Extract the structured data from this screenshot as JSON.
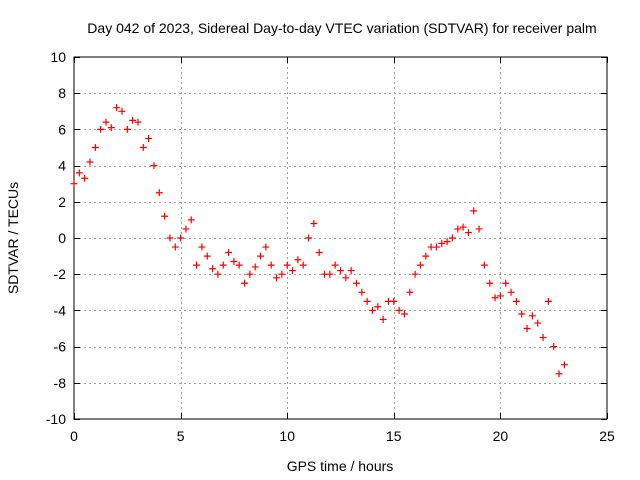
{
  "chart_data": {
    "type": "scatter",
    "title": "Day 042 of 2023, Sidereal Day-to-day VTEC variation (SDTVAR) for receiver palm",
    "xlabel": "GPS time / hours",
    "ylabel": "SDTVAR / TECUs",
    "xlim": [
      0,
      25
    ],
    "ylim": [
      -10,
      10
    ],
    "xticks": [
      0,
      5,
      10,
      15,
      20,
      25
    ],
    "yticks": [
      -10,
      -8,
      -6,
      -4,
      -2,
      0,
      2,
      4,
      6,
      8,
      10
    ],
    "grid": true,
    "marker": "+",
    "series": [
      {
        "name": "SDTVAR",
        "color": "#ff0000",
        "x": [
          0.0,
          0.25,
          0.5,
          0.75,
          1.0,
          1.25,
          1.5,
          1.75,
          2.0,
          2.25,
          2.5,
          2.75,
          3.0,
          3.25,
          3.5,
          3.75,
          4.0,
          4.25,
          4.5,
          4.75,
          5.0,
          5.25,
          5.5,
          5.75,
          6.0,
          6.25,
          6.5,
          6.75,
          7.0,
          7.25,
          7.5,
          7.75,
          8.0,
          8.25,
          8.5,
          8.75,
          9.0,
          9.25,
          9.5,
          9.75,
          10.0,
          10.25,
          10.5,
          10.75,
          11.0,
          11.25,
          11.5,
          11.75,
          12.0,
          12.25,
          12.5,
          12.75,
          13.0,
          13.25,
          13.5,
          13.75,
          14.0,
          14.25,
          14.5,
          14.75,
          15.0,
          15.25,
          15.5,
          15.75,
          16.0,
          16.25,
          16.5,
          16.75,
          17.0,
          17.25,
          17.5,
          17.75,
          18.0,
          18.25,
          18.5,
          18.75,
          19.0,
          19.25,
          19.5,
          19.75,
          20.0,
          20.25,
          20.5,
          20.75,
          21.0,
          21.25,
          21.5,
          21.75,
          22.0,
          22.25,
          22.5,
          22.75,
          23.0
        ],
        "y": [
          3.0,
          3.6,
          3.3,
          4.2,
          5.0,
          6.0,
          6.4,
          6.1,
          7.2,
          7.0,
          6.0,
          6.5,
          6.4,
          5.0,
          5.5,
          4.0,
          2.5,
          1.2,
          0.0,
          -0.5,
          0.0,
          0.5,
          1.0,
          -1.5,
          -0.5,
          -1.0,
          -1.7,
          -2.0,
          -1.5,
          -0.8,
          -1.3,
          -1.5,
          -2.5,
          -2.0,
          -1.6,
          -1.0,
          -0.5,
          -1.5,
          -2.2,
          -2.0,
          -1.5,
          -1.8,
          -1.2,
          -1.5,
          0.0,
          0.8,
          -0.8,
          -2.0,
          -2.0,
          -1.5,
          -1.8,
          -2.2,
          -1.8,
          -2.5,
          -3.0,
          -3.5,
          -4.0,
          -3.8,
          -4.5,
          -3.5,
          -3.5,
          -4.0,
          -4.2,
          -3.0,
          -2.0,
          -1.5,
          -1.0,
          -0.5,
          -0.5,
          -0.3,
          -0.2,
          0.0,
          0.5,
          0.6,
          0.3,
          1.5,
          0.5,
          -1.5,
          -2.5,
          -3.3,
          -3.2,
          -2.5,
          -3.0,
          -3.5,
          -4.2,
          -5.0,
          -4.3,
          -4.7,
          -5.5,
          -3.5,
          -6.0,
          -7.5,
          -7.0
        ]
      }
    ]
  }
}
